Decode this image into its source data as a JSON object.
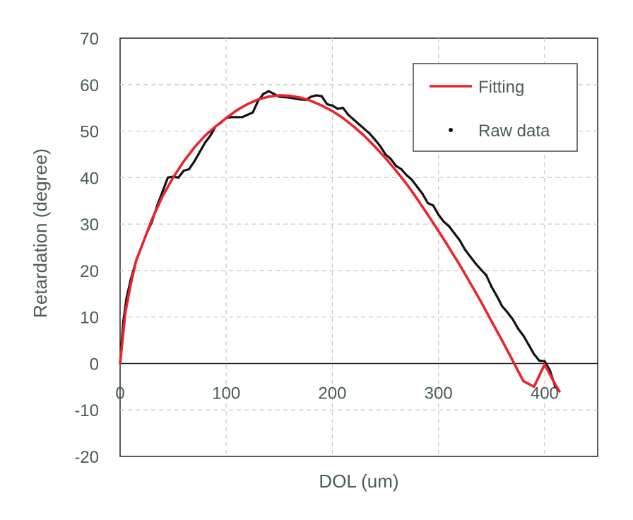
{
  "chart_data": {
    "type": "line",
    "title": "",
    "xlabel": "DOL (um)",
    "ylabel": "Retardation (degree)",
    "xlim": [
      0,
      450
    ],
    "ylim": [
      -20,
      70
    ],
    "x_ticks": [
      0,
      100,
      200,
      300,
      400
    ],
    "y_ticks": [
      -20,
      -10,
      0,
      10,
      20,
      30,
      40,
      50,
      60,
      70
    ],
    "grid": true,
    "legend_position": "top-right",
    "series": [
      {
        "name": "Fitting",
        "color": "#e8242c",
        "style": "line",
        "x": [
          0,
          5,
          10,
          15,
          20,
          30,
          40,
          50,
          60,
          70,
          80,
          90,
          100,
          110,
          120,
          130,
          140,
          150,
          160,
          170,
          180,
          190,
          200,
          210,
          220,
          230,
          240,
          250,
          260,
          270,
          280,
          290,
          300,
          310,
          320,
          330,
          340,
          350,
          360,
          370,
          380,
          390,
          400,
          410,
          414
        ],
        "y": [
          0,
          11,
          17,
          22,
          25,
          31,
          36,
          40,
          43.5,
          46.5,
          49,
          51,
          52.8,
          54.5,
          55.8,
          56.8,
          57.4,
          57.7,
          57.6,
          57.2,
          56.5,
          55.5,
          54.3,
          52.8,
          51,
          49,
          46.7,
          44.2,
          41.5,
          38.6,
          35.4,
          32,
          28.5,
          24.9,
          21.2,
          17.3,
          13.3,
          9.1,
          4.9,
          0.6,
          -3.8,
          -5.0,
          -0.2,
          -4.5,
          -6.0
        ]
      },
      {
        "name": "Raw data",
        "color": "#111111",
        "style": "points",
        "x": [
          0,
          3,
          6,
          10,
          15,
          20,
          25,
          30,
          35,
          40,
          45,
          50,
          55,
          60,
          65,
          70,
          75,
          80,
          85,
          90,
          95,
          100,
          105,
          110,
          115,
          120,
          125,
          130,
          135,
          140,
          145,
          150,
          155,
          160,
          165,
          170,
          175,
          180,
          185,
          190,
          195,
          200,
          205,
          210,
          215,
          220,
          225,
          230,
          235,
          240,
          245,
          250,
          255,
          260,
          265,
          270,
          275,
          280,
          285,
          290,
          295,
          300,
          305,
          310,
          315,
          320,
          325,
          330,
          335,
          340,
          345,
          350,
          355,
          360,
          365,
          370,
          375,
          380,
          385,
          390,
          395,
          400,
          405,
          410
        ],
        "y": [
          0,
          9,
          14,
          18,
          22,
          25,
          28,
          30.5,
          34,
          37,
          40,
          40.2,
          40,
          41.5,
          41.8,
          43.5,
          45.5,
          47.5,
          49,
          51,
          51.8,
          52.8,
          53,
          53,
          53,
          53.5,
          54,
          56.5,
          58,
          58.6,
          58,
          57.4,
          57.3,
          57.2,
          57,
          56.8,
          56.7,
          57.4,
          57.7,
          57.5,
          55.8,
          55.5,
          54.8,
          55,
          53.5,
          52.5,
          51.5,
          50.5,
          49.5,
          48.2,
          46.8,
          45,
          44,
          42.5,
          41.8,
          40.5,
          39.5,
          38,
          36.5,
          34.5,
          34,
          32,
          30.5,
          29.5,
          28,
          26.5,
          24.5,
          23,
          21.5,
          20.2,
          19,
          16.5,
          14.5,
          12.3,
          11,
          9.5,
          7.5,
          6,
          4,
          2,
          0.6,
          0.5,
          -1.5,
          -5.0
        ]
      }
    ]
  },
  "legend": {
    "items": [
      {
        "label": "Fitting",
        "symbol": "line"
      },
      {
        "label": "Raw data",
        "symbol": "dot"
      }
    ]
  },
  "colors": {
    "fitting": "#e8242c",
    "raw": "#111111",
    "axis_text": "#4a5a5a",
    "grid": "#c8c8c8",
    "frame": "#222222"
  }
}
